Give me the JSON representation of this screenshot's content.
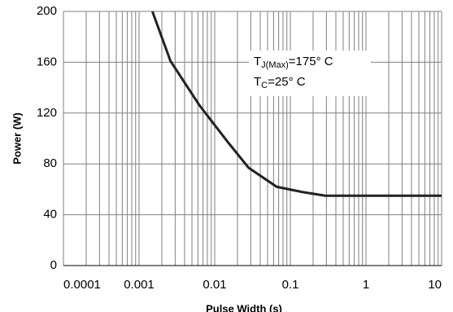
{
  "chart_data": {
    "type": "line",
    "x_label": "Pulse Width (s)",
    "y_label": "Power (W)",
    "annotation": [
      [
        "T",
        "J(Max)",
        "=175° C"
      ],
      [
        "T",
        "C",
        "=25° C"
      ]
    ],
    "log_x": true,
    "grid": true,
    "xlim": [
      0.0001,
      10
    ],
    "xticks": [
      0.0001,
      0.001,
      0.01,
      0.1,
      1,
      10
    ],
    "ylim": [
      0,
      200
    ],
    "yticks": [
      0,
      40,
      80,
      120,
      160,
      200
    ],
    "x": [
      0.0015,
      0.0026,
      0.0063,
      0.015,
      0.028,
      0.066,
      0.14,
      0.29,
      10
    ],
    "values": [
      200,
      161,
      126,
      97,
      77,
      62,
      58,
      55,
      55
    ],
    "color": "#222222"
  }
}
